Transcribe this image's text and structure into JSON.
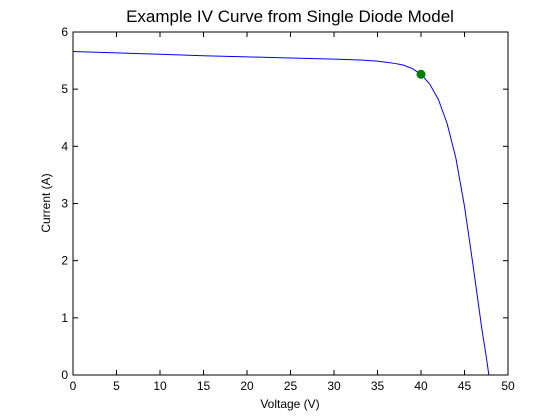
{
  "chart_data": {
    "type": "line",
    "title": "Example IV Curve from Single Diode Model",
    "xlabel": "Voltage (V)",
    "ylabel": "Current (A)",
    "xlim": [
      0,
      50
    ],
    "ylim": [
      0,
      6
    ],
    "xticks": [
      "0",
      "5",
      "10",
      "15",
      "20",
      "25",
      "30",
      "35",
      "40",
      "45",
      "50"
    ],
    "yticks": [
      "0",
      "1",
      "2",
      "3",
      "4",
      "5",
      "6"
    ],
    "grid": false,
    "series": [
      {
        "color": "#0000ff",
        "x": [
          0,
          5,
          10,
          15,
          20,
          25,
          30,
          33,
          35,
          36,
          37,
          38,
          39,
          40,
          41,
          42,
          43,
          44,
          45,
          46,
          47,
          47.5,
          47.8
        ],
        "y": [
          5.66,
          5.635,
          5.61,
          5.585,
          5.565,
          5.545,
          5.525,
          5.51,
          5.49,
          5.47,
          5.45,
          5.42,
          5.36,
          5.26,
          5.09,
          4.82,
          4.4,
          3.8,
          2.95,
          1.9,
          0.8,
          0.32,
          0.0
        ]
      }
    ],
    "markers": [
      {
        "x": 40,
        "y": 5.26,
        "color": "#007f00"
      }
    ]
  }
}
